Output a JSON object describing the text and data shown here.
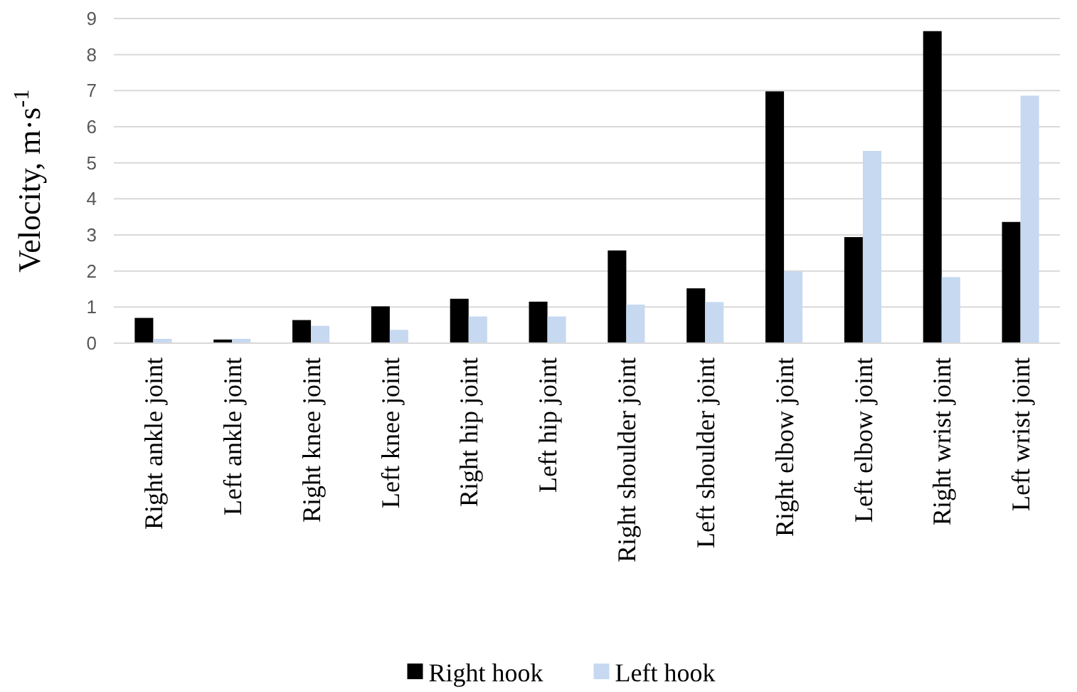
{
  "chart_data": {
    "type": "bar",
    "ylabel": "Velocity, m·s$^{-1}$",
    "categories": [
      "Right ankle joint",
      "Left ankle joint",
      "Right knee joint",
      "Left knee joint",
      "Right hip joint",
      "Left hip joint",
      "Right shoulder joint",
      "Left shoulder joint",
      "Right elbow joint",
      "Left elbow joint",
      "Right wrist joint",
      "Left wrist joint"
    ],
    "series": [
      {
        "name": "Right hook",
        "color": "#000000",
        "values": [
          0.7,
          0.1,
          0.64,
          1.02,
          1.23,
          1.15,
          2.57,
          1.52,
          6.98,
          2.94,
          8.65,
          3.36
        ]
      },
      {
        "name": "Left hook",
        "color": "#c6d9f1",
        "values": [
          0.12,
          0.12,
          0.48,
          0.37,
          0.74,
          0.74,
          1.07,
          1.14,
          1.99,
          5.33,
          1.83,
          6.86
        ]
      }
    ],
    "ylim": [
      0,
      9
    ],
    "yticks": [
      0,
      1,
      2,
      3,
      4,
      5,
      6,
      7,
      8,
      9
    ],
    "grid": "y",
    "legend": "bottom"
  }
}
